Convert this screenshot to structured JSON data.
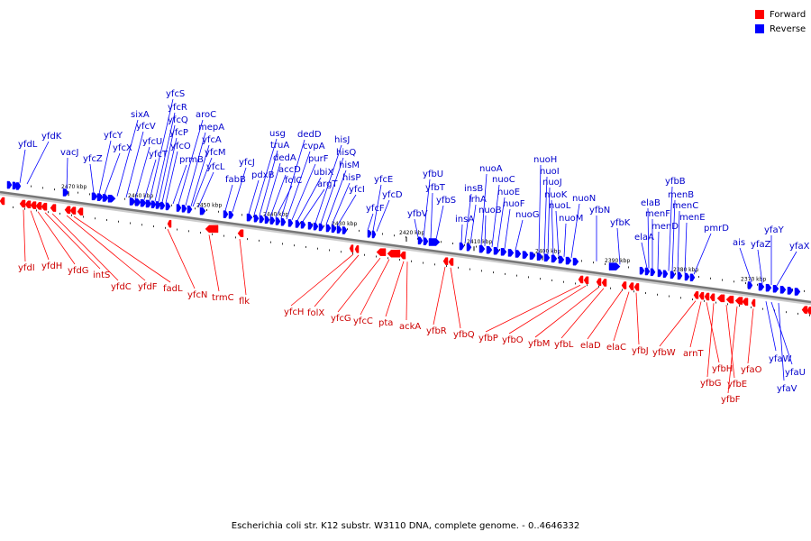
{
  "legend": [
    {
      "label": "Forward",
      "color": "#ff0000"
    },
    {
      "label": "Reverse",
      "color": "#0000ff"
    }
  ],
  "caption": "Escherichia coli str. K12 substr. W3110 DNA, complete genome. - 0..4646332",
  "colors": {
    "forward": "#ff0000",
    "reverse": "#0000ff",
    "forward_label": "#cc0000",
    "reverse_label": "#0000cc",
    "axis": "#888888"
  },
  "scale_labels": [
    "2470 kbp",
    "2460 kbp",
    "2450 kbp",
    "2440 kbp",
    "2430 kbp",
    "2420 kbp",
    "2410 kbp",
    "2400 kbp",
    "2390 kbp",
    "2380 kbp",
    "2370 kbp"
  ],
  "reverse_genes": [
    "yfdL",
    "yfdK",
    "vacJ",
    "yfcZ",
    "yfcY",
    "yfcX",
    "sixA",
    "yfcV",
    "yfcU",
    "yfcT",
    "yfcS",
    "yfcR",
    "yfcQ",
    "yfcP",
    "yfcO",
    "prmB",
    "aroC",
    "mepA",
    "yfcA",
    "yfcM",
    "yfcL",
    "fabB",
    "yfcJ",
    "pdxB",
    "usg",
    "truA",
    "dedA",
    "accD",
    "folC",
    "dedD",
    "cvpA",
    "purF",
    "ubiX",
    "argT",
    "hisJ",
    "hisQ",
    "hisM",
    "hisP",
    "yfcI",
    "yfcF",
    "yfcE",
    "yfcD",
    "yfbV",
    "yfbU",
    "yfbT",
    "yfbS",
    "insA",
    "insB",
    "lrhA",
    "nuoA",
    "nuoB",
    "nuoC",
    "nuoE",
    "nuoF",
    "nuoG",
    "nuoH",
    "nuoI",
    "nuoJ",
    "nuoK",
    "nuoL",
    "nuoM",
    "nuoN",
    "yfbN",
    "yfbK",
    "elaA",
    "elaB",
    "menF",
    "menD",
    "yfbB",
    "menB",
    "menC",
    "menE",
    "pmrD",
    "ais",
    "yfaZ",
    "yfaY",
    "yfaX",
    "yfaW",
    "yfaU",
    "yfaV"
  ],
  "forward_genes": [
    "yfdI",
    "yfdH",
    "yfdG",
    "intS",
    "yfdC",
    "yfdF",
    "fadL",
    "yfcN",
    "trmC",
    "flk",
    "yfcH",
    "folX",
    "yfcG",
    "yfcC",
    "pta",
    "ackA",
    "yfbR",
    "yfbQ",
    "yfbP",
    "yfbO",
    "yfbM",
    "yfbL",
    "elaD",
    "elaC",
    "yfbJ",
    "yfbW",
    "arnT",
    "yfbH",
    "yfbG",
    "yfbE",
    "yfbF",
    "yfaO"
  ]
}
